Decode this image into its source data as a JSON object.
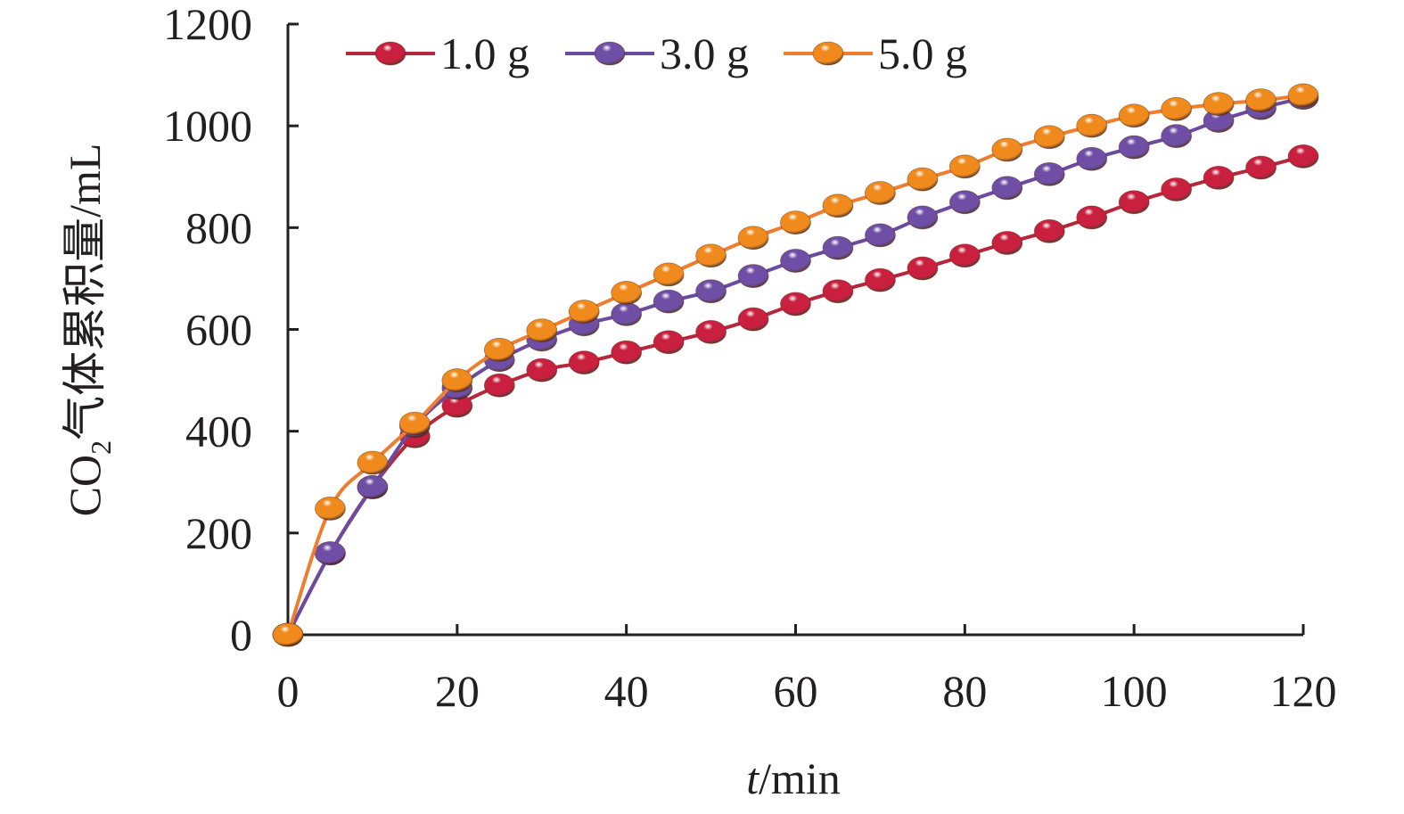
{
  "chart_data": {
    "type": "line",
    "xlabel_italic": "t",
    "xlabel_rest": "/min",
    "ylabel_prefix": "CO",
    "ylabel_sub": "2",
    "ylabel_rest": "气体累积量/mL",
    "xlim": [
      0,
      120
    ],
    "ylim": [
      0,
      1200
    ],
    "xticks": [
      0,
      20,
      40,
      60,
      80,
      100,
      120
    ],
    "yticks": [
      0,
      200,
      400,
      600,
      800,
      1000,
      1200
    ],
    "grid": false,
    "legend_position": "top-left",
    "x": [
      0,
      5,
      10,
      15,
      20,
      25,
      30,
      35,
      40,
      45,
      50,
      55,
      60,
      65,
      70,
      75,
      80,
      85,
      90,
      95,
      100,
      105,
      110,
      115,
      120
    ],
    "series": [
      {
        "name": "1.0 g",
        "color": "#b5283c",
        "marker_color": "#c8203e",
        "values": [
          0,
          160,
          290,
          390,
          450,
          490,
          520,
          535,
          555,
          575,
          595,
          620,
          650,
          675,
          697,
          720,
          745,
          770,
          793,
          820,
          850,
          875,
          898,
          918,
          940
        ]
      },
      {
        "name": "3.0 g",
        "color": "#6a4ba0",
        "marker_color": "#6f4fa6",
        "values": [
          0,
          160,
          290,
          410,
          485,
          540,
          580,
          610,
          630,
          655,
          675,
          705,
          735,
          760,
          785,
          820,
          850,
          878,
          905,
          935,
          958,
          980,
          1010,
          1035,
          1055
        ]
      },
      {
        "name": "5.0 g",
        "color": "#ef7d30",
        "marker_color": "#f08a1c",
        "values": [
          0,
          248,
          338,
          415,
          500,
          560,
          598,
          635,
          672,
          708,
          745,
          780,
          810,
          843,
          868,
          895,
          920,
          953,
          978,
          1000,
          1020,
          1033,
          1043,
          1050,
          1060
        ]
      }
    ]
  }
}
